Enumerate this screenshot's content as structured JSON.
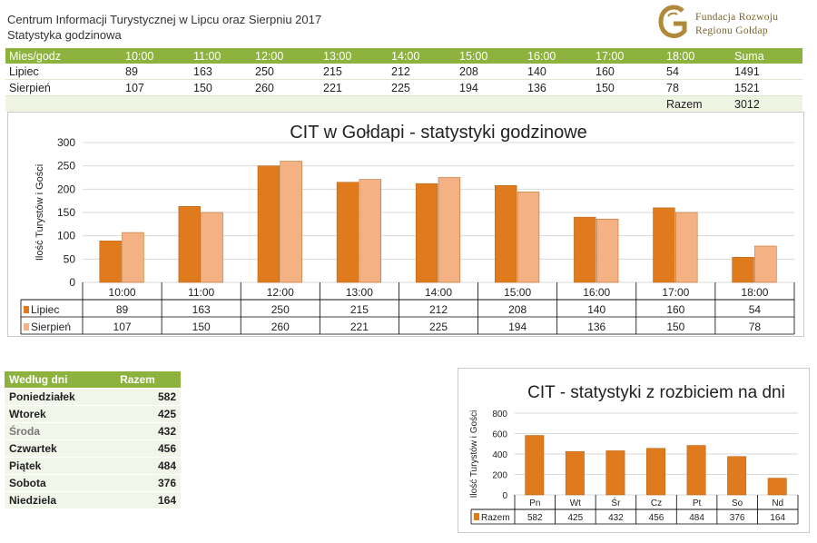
{
  "header": {
    "title": "Centrum Informacji Turystycznej w Lipcu oraz Sierpniu 2017",
    "subtitle": "Statystyka godzinowa",
    "logo_line1": "Fundacja Rozwoju",
    "logo_line2": "Regionu Gołdap"
  },
  "hours_table": {
    "corner": "Mies/godz",
    "columns": [
      "10:00",
      "11:00",
      "12:00",
      "13:00",
      "14:00",
      "15:00",
      "16:00",
      "17:00",
      "18:00",
      "Suma"
    ],
    "rows": [
      {
        "label": "Lipiec",
        "values": [
          "89",
          "163",
          "250",
          "215",
          "212",
          "208",
          "140",
          "160",
          "54",
          "1491"
        ]
      },
      {
        "label": "Sierpień",
        "values": [
          "107",
          "150",
          "260",
          "221",
          "225",
          "194",
          "136",
          "150",
          "78",
          "1521"
        ]
      }
    ],
    "total_label": "Razem",
    "total_value": "3012"
  },
  "days_table": {
    "header_left": "Według dni",
    "header_right": "Razem",
    "rows": [
      {
        "label": "Poniedziałek",
        "value": "582"
      },
      {
        "label": "Wtorek",
        "value": "425"
      },
      {
        "label": "Środa",
        "value": "432"
      },
      {
        "label": "Czwartek",
        "value": "456"
      },
      {
        "label": "Piątek",
        "value": "484"
      },
      {
        "label": "Sobota",
        "value": "376"
      },
      {
        "label": "Niedziela",
        "value": "164"
      }
    ]
  },
  "colors": {
    "lipiec": "#e07b1d",
    "sierpien": "#f4b183",
    "header_green": "#8db33e",
    "logo_gold": "#b08a3a"
  },
  "chart_data": [
    {
      "type": "bar",
      "title": "CIT w Gołdapi - statystyki godzinowe",
      "ylabel": "Ilość Turystów i Gości",
      "xlabel": "",
      "ylim": [
        0,
        300
      ],
      "yticks": [
        0,
        50,
        100,
        150,
        200,
        250,
        300
      ],
      "categories": [
        "10:00",
        "11:00",
        "12:00",
        "13:00",
        "14:00",
        "15:00",
        "16:00",
        "17:00",
        "18:00"
      ],
      "series": [
        {
          "name": "Lipiec",
          "values": [
            89,
            163,
            250,
            215,
            212,
            208,
            140,
            160,
            54
          ]
        },
        {
          "name": "Sierpień",
          "values": [
            107,
            150,
            260,
            221,
            225,
            194,
            136,
            150,
            78
          ]
        }
      ],
      "grid": true,
      "legend": "data-table-below"
    },
    {
      "type": "bar",
      "title": "CIT - statystyki z rozbiciem na dni",
      "ylabel": "Ilość Turystów i Gości",
      "xlabel": "",
      "ylim": [
        0,
        800
      ],
      "yticks": [
        0,
        200,
        400,
        600,
        800
      ],
      "categories": [
        "Pn",
        "Wt",
        "Śr",
        "Cz",
        "Pt",
        "So",
        "Nd"
      ],
      "series": [
        {
          "name": "Razem",
          "values": [
            582,
            425,
            432,
            456,
            484,
            376,
            164
          ]
        }
      ],
      "grid": true,
      "legend": "data-table-below"
    }
  ]
}
